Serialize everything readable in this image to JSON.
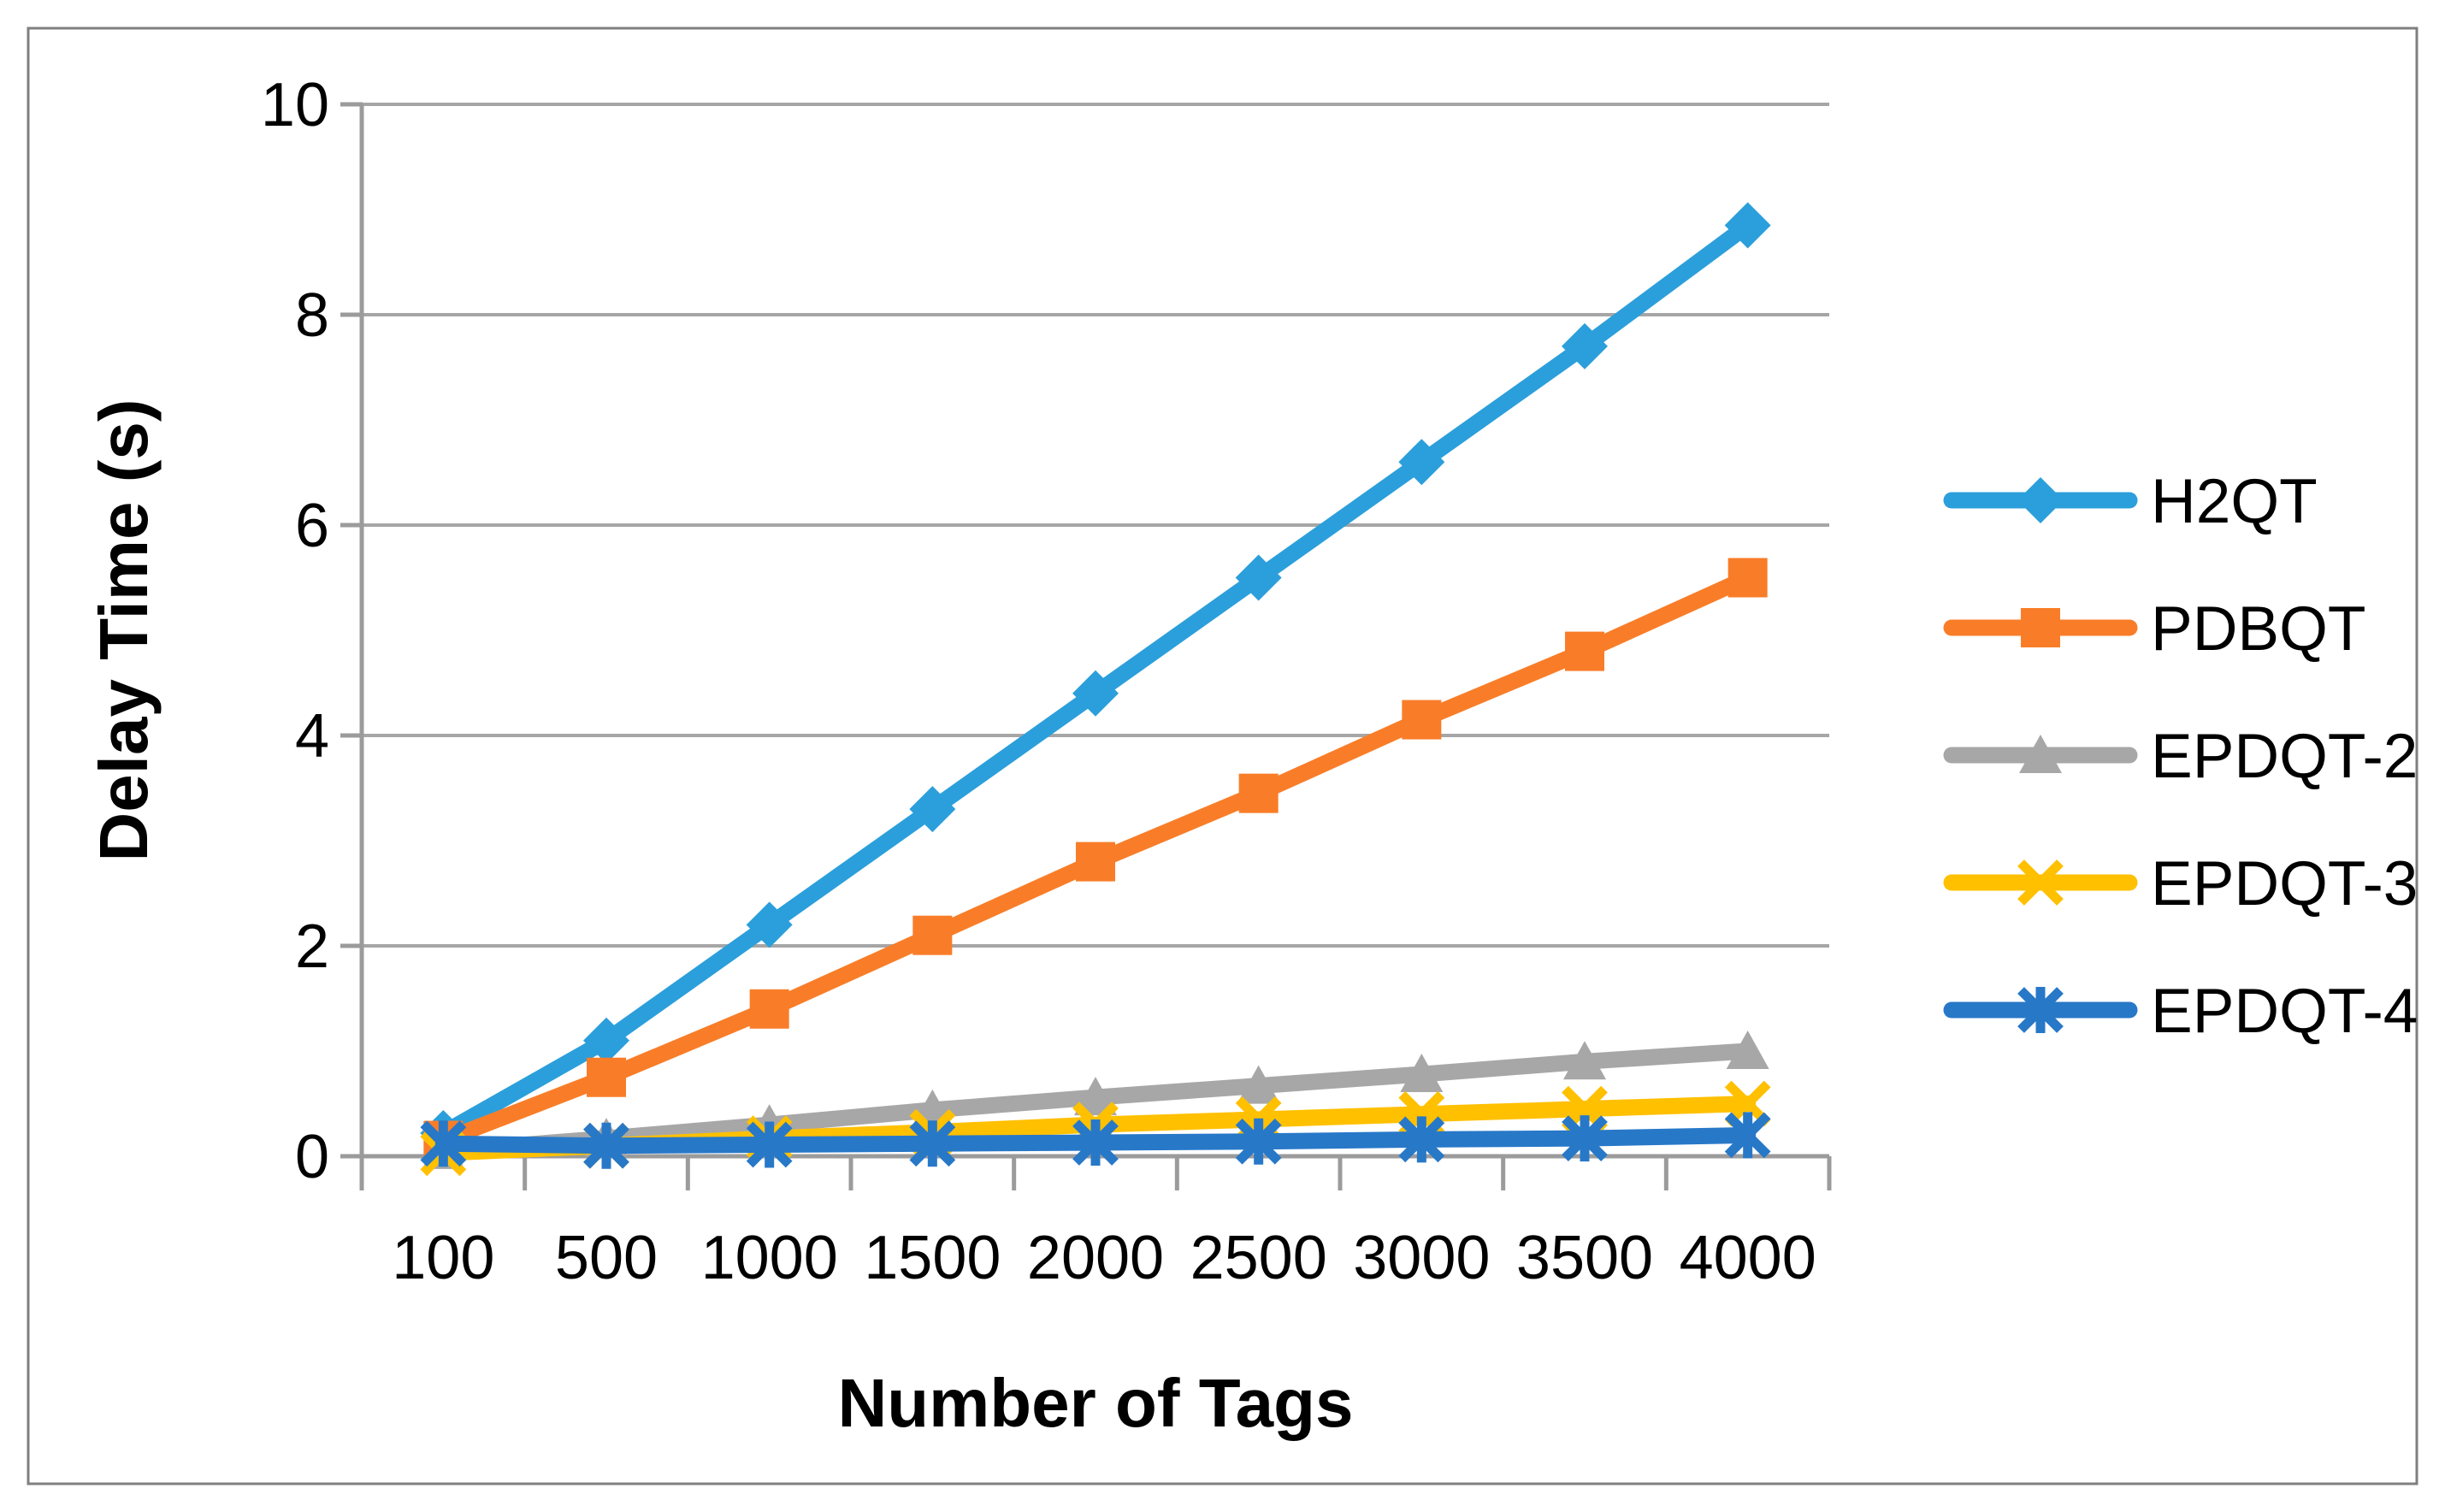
{
  "figure": {
    "y_axis_title": "Delay Time (s)",
    "x_axis_title": "Number of Tags"
  },
  "colors": {
    "background": "#FFFFFF",
    "plot_border": "#7F7F7F",
    "gridline": "#A6A6A6",
    "axis_line": "#9B9B9B",
    "text": "#000000",
    "series_h2qt": "#2B9FDB",
    "series_pdbqt": "#F97D28",
    "series_epdqt2": "#A7A7A7",
    "series_epdqt3": "#FFC000",
    "series_epdqt4": "#2878C8"
  },
  "chart_data": {
    "type": "line",
    "title": "",
    "xlabel": "Number of Tags",
    "ylabel": "Delay Time (s)",
    "categories": [
      "100",
      "500",
      "1000",
      "1500",
      "2000",
      "2500",
      "3000",
      "3500",
      "4000"
    ],
    "y_ticks": [
      "0",
      "2",
      "4",
      "6",
      "8",
      "10"
    ],
    "ylim": [
      0,
      10
    ],
    "grid": "horizontal",
    "legend_position": "right",
    "series": [
      {
        "name": "H2QT",
        "color": "#2B9FDB",
        "marker": "diamond",
        "values": [
          0.22,
          1.1,
          2.2,
          3.3,
          4.4,
          5.5,
          6.6,
          7.7,
          8.85
        ]
      },
      {
        "name": "PDBQT",
        "color": "#F97D28",
        "marker": "square",
        "values": [
          0.15,
          0.75,
          1.4,
          2.1,
          2.8,
          3.45,
          4.15,
          4.8,
          5.5
        ]
      },
      {
        "name": "EPDQT-2",
        "color": "#A7A7A7",
        "marker": "triangle",
        "values": [
          0.05,
          0.17,
          0.3,
          0.44,
          0.56,
          0.67,
          0.78,
          0.9,
          1.0
        ]
      },
      {
        "name": "EPDQT-3",
        "color": "#FFC000",
        "marker": "x",
        "values": [
          0.03,
          0.1,
          0.17,
          0.23,
          0.3,
          0.35,
          0.4,
          0.45,
          0.5
        ]
      },
      {
        "name": "EPDQT-4",
        "color": "#2878C8",
        "marker": "asterisk",
        "values": [
          0.12,
          0.1,
          0.11,
          0.12,
          0.13,
          0.14,
          0.16,
          0.17,
          0.2
        ]
      }
    ]
  }
}
